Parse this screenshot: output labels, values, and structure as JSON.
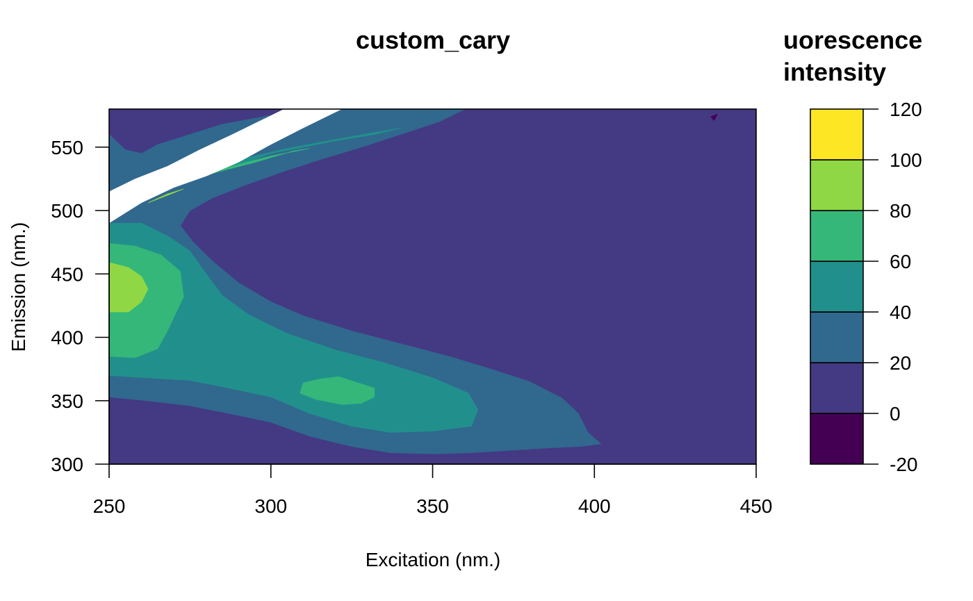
{
  "chart_data": {
    "type": "heatmap",
    "subtype": "filled-contour",
    "title": "custom_cary",
    "xlabel": "Excitation (nm.)",
    "ylabel": "Emission (nm.)",
    "xlim": [
      250,
      450
    ],
    "ylim": [
      300,
      580
    ],
    "x_ticks": [
      "250",
      "300",
      "350",
      "400",
      "450"
    ],
    "y_ticks": [
      "300",
      "350",
      "400",
      "450",
      "500",
      "550"
    ],
    "legend": {
      "title_lines": [
        "uorescence",
        "intensity"
      ],
      "tick_labels": [
        "120",
        "100",
        "80",
        "60",
        "40",
        "20",
        "0",
        "-20"
      ],
      "levels": [
        -20,
        0,
        20,
        40,
        60,
        80,
        100,
        120
      ],
      "colors": [
        "#440154",
        "#443983",
        "#31688e",
        "#21908c",
        "#35b779",
        "#8fd744",
        "#fde725"
      ],
      "placement": "right"
    },
    "missing_color": "#ffffff",
    "regions": [
      {
        "level_index": 2,
        "points": [
          [
            250,
            353
          ],
          [
            262,
            350
          ],
          [
            275,
            346
          ],
          [
            287,
            340
          ],
          [
            300,
            333
          ],
          [
            312,
            322
          ],
          [
            325,
            314
          ],
          [
            337,
            309
          ],
          [
            350,
            308
          ],
          [
            362,
            309
          ],
          [
            375,
            311
          ],
          [
            387,
            313
          ],
          [
            396,
            314
          ],
          [
            402,
            316
          ],
          [
            398,
            325
          ],
          [
            395,
            340
          ],
          [
            390,
            352
          ],
          [
            380,
            365
          ],
          [
            368,
            375
          ],
          [
            355,
            385
          ],
          [
            340,
            395
          ],
          [
            325,
            405
          ],
          [
            310,
            417
          ],
          [
            300,
            428
          ],
          [
            290,
            443
          ],
          [
            282,
            460
          ],
          [
            276,
            475
          ],
          [
            272,
            488
          ],
          [
            275,
            500
          ],
          [
            282,
            510
          ],
          [
            292,
            520
          ],
          [
            303,
            530
          ],
          [
            315,
            540
          ],
          [
            328,
            550
          ],
          [
            340,
            560
          ],
          [
            352,
            570
          ],
          [
            360,
            580
          ],
          [
            320,
            580
          ],
          [
            300,
            575
          ],
          [
            285,
            568
          ],
          [
            275,
            560
          ],
          [
            265,
            552
          ],
          [
            260,
            545
          ],
          [
            255,
            548
          ],
          [
            250,
            560
          ]
        ]
      },
      {
        "level_index": 3,
        "points": [
          [
            250,
            370
          ],
          [
            262,
            368
          ],
          [
            275,
            366
          ],
          [
            287,
            360
          ],
          [
            300,
            353
          ],
          [
            312,
            340
          ],
          [
            325,
            330
          ],
          [
            337,
            325
          ],
          [
            350,
            326
          ],
          [
            362,
            330
          ],
          [
            364,
            343
          ],
          [
            361,
            356
          ],
          [
            350,
            368
          ],
          [
            335,
            380
          ],
          [
            320,
            390
          ],
          [
            305,
            403
          ],
          [
            293,
            418
          ],
          [
            285,
            433
          ],
          [
            280,
            450
          ],
          [
            275,
            468
          ],
          [
            268,
            480
          ],
          [
            260,
            490
          ],
          [
            250,
            490
          ]
        ]
      },
      {
        "level_index": 4,
        "points": [
          [
            250,
            385
          ],
          [
            258,
            384
          ],
          [
            265,
            391
          ],
          [
            268,
            405
          ],
          [
            273,
            432
          ],
          [
            272,
            452
          ],
          [
            266,
            465
          ],
          [
            258,
            472
          ],
          [
            250,
            474
          ]
        ]
      },
      {
        "level_index": 4,
        "points": [
          [
            309,
            356
          ],
          [
            314,
            351
          ],
          [
            322,
            347
          ],
          [
            328,
            348
          ],
          [
            332,
            353
          ],
          [
            332,
            360
          ],
          [
            327,
            364
          ],
          [
            321,
            369
          ],
          [
            315,
            367
          ],
          [
            310,
            364
          ]
        ]
      },
      {
        "level_index": 5,
        "points": [
          [
            250,
            420
          ],
          [
            256,
            420
          ],
          [
            260,
            428
          ],
          [
            262,
            438
          ],
          [
            260,
            448
          ],
          [
            256,
            455
          ],
          [
            250,
            459
          ]
        ]
      },
      {
        "level_index": 3,
        "points": [
          [
            260,
            510
          ],
          [
            270,
            520
          ],
          [
            280,
            528
          ],
          [
            290,
            536
          ],
          [
            300,
            545
          ],
          [
            310,
            550
          ],
          [
            320,
            555
          ],
          [
            332,
            560
          ],
          [
            340,
            565
          ],
          [
            333,
            562
          ],
          [
            320,
            556
          ],
          [
            305,
            549
          ],
          [
            292,
            541
          ],
          [
            280,
            533
          ],
          [
            270,
            525
          ],
          [
            262,
            517
          ]
        ]
      },
      {
        "level_index": 4,
        "points": [
          [
            262,
            514
          ],
          [
            272,
            522
          ],
          [
            283,
            530
          ],
          [
            295,
            538
          ],
          [
            307,
            547
          ],
          [
            312,
            549
          ],
          [
            300,
            543
          ],
          [
            288,
            535
          ],
          [
            277,
            527
          ],
          [
            267,
            520
          ]
        ]
      },
      {
        "level_index": 5,
        "points": [
          [
            262,
            506
          ],
          [
            268,
            512
          ],
          [
            273,
            517
          ],
          [
            268,
            513
          ]
        ]
      },
      {
        "level_index": 0,
        "points": [
          [
            436,
            574
          ],
          [
            437,
            571
          ],
          [
            438,
            576
          ]
        ]
      }
    ],
    "masked_band": {
      "lower": [
        [
          250,
          490
        ],
        [
          260,
          506
        ],
        [
          270,
          518
        ],
        [
          280,
          527
        ],
        [
          290,
          538
        ],
        [
          300,
          552
        ],
        [
          310,
          565
        ],
        [
          318,
          575
        ],
        [
          322,
          580
        ]
      ],
      "upper": [
        [
          250,
          515
        ],
        [
          258,
          525
        ],
        [
          268,
          535
        ],
        [
          278,
          548
        ],
        [
          288,
          560
        ],
        [
          296,
          570
        ],
        [
          304,
          580
        ]
      ]
    }
  }
}
